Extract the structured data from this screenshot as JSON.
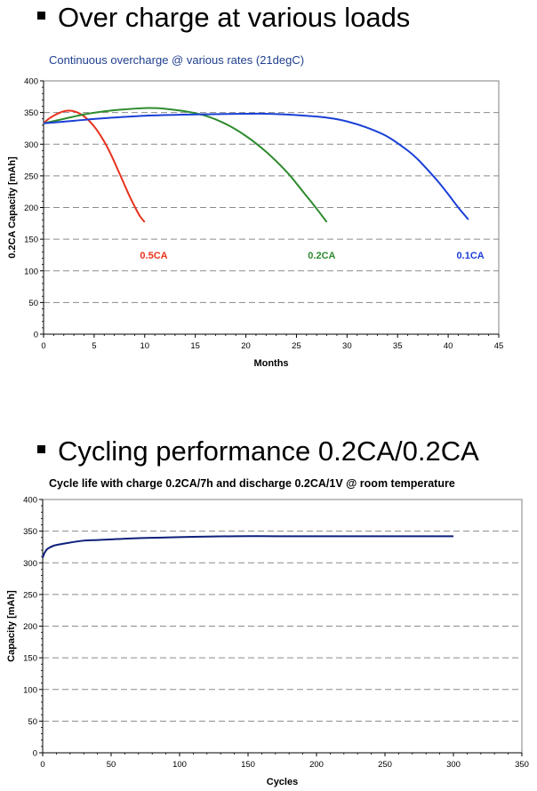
{
  "sections": [
    {
      "heading": "Over charge at various loads"
    },
    {
      "heading": "Cycling performance 0.2CA/0.2CA"
    }
  ],
  "chart_data": [
    {
      "type": "line",
      "title": "Continuous overcharge @ various rates (21degC)",
      "title_color": "#1f3f8f",
      "xlabel": "Months",
      "ylabel": "0.2CA Capacity [mAh]",
      "xlim": [
        0,
        45
      ],
      "ylim": [
        0,
        400
      ],
      "xticks": [
        0,
        5,
        10,
        15,
        20,
        25,
        30,
        35,
        40,
        45
      ],
      "yticks": [
        0,
        50,
        100,
        150,
        200,
        250,
        300,
        350,
        400
      ],
      "grid": "horizontal-dashed",
      "series": [
        {
          "name": "0.5CA",
          "color": "#e8321e",
          "label_at": [
            10.9,
            125
          ],
          "x": [
            0,
            0.5,
            1,
            1.5,
            2,
            2.5,
            3,
            3.5,
            4,
            4.5,
            5,
            5.5,
            6,
            6.5,
            7,
            7.5,
            8,
            8.5,
            9,
            9.5,
            10
          ],
          "y": [
            333,
            340,
            345,
            349,
            352,
            353,
            352,
            349,
            344,
            337,
            328,
            317,
            304,
            289,
            272,
            254,
            236,
            218,
            202,
            187,
            177
          ]
        },
        {
          "name": "0.2CA",
          "color": "#2e8b2e",
          "label_at": [
            27.5,
            125
          ],
          "x": [
            0,
            2,
            4,
            6,
            8,
            10,
            11,
            12,
            14,
            16,
            18,
            20,
            22,
            24,
            25,
            26,
            27,
            28
          ],
          "y": [
            333,
            340,
            347,
            352,
            355,
            357,
            357,
            356,
            352,
            345,
            332,
            313,
            288,
            257,
            238,
            218,
            198,
            177
          ]
        },
        {
          "name": "0.1CA",
          "color": "#1a3fd6",
          "label_at": [
            42.2,
            125
          ],
          "x": [
            0,
            3,
            6,
            10,
            15,
            20,
            22,
            25,
            28,
            30,
            32,
            34,
            36,
            37,
            38,
            39,
            40,
            41,
            42
          ],
          "y": [
            333,
            337,
            341,
            345,
            347,
            348,
            348,
            346,
            342,
            336,
            326,
            312,
            290,
            276,
            259,
            241,
            221,
            200,
            181
          ]
        }
      ]
    },
    {
      "type": "line",
      "title": "Cycle life with charge 0.2CA/7h and discharge 0.2CA/1V @ room temperature",
      "xlabel": "Cycles",
      "ylabel": "Capacity [mAh]",
      "xlim": [
        0,
        350
      ],
      "ylim": [
        0,
        400
      ],
      "xticks": [
        0,
        50,
        100,
        150,
        200,
        250,
        300,
        350
      ],
      "yticks": [
        0,
        50,
        100,
        150,
        200,
        250,
        300,
        350,
        400
      ],
      "grid": "horizontal-dashed",
      "series": [
        {
          "color": "#0d1f7a",
          "x": [
            0,
            1,
            2,
            3,
            5,
            8,
            12,
            20,
            30,
            40,
            50,
            70,
            90,
            110,
            140,
            170,
            200,
            230,
            260,
            300
          ],
          "y": [
            308,
            314,
            318,
            321,
            324,
            327,
            329,
            332,
            335,
            336,
            337,
            339,
            340,
            341,
            342,
            342,
            342,
            342,
            342,
            342
          ]
        }
      ]
    }
  ]
}
